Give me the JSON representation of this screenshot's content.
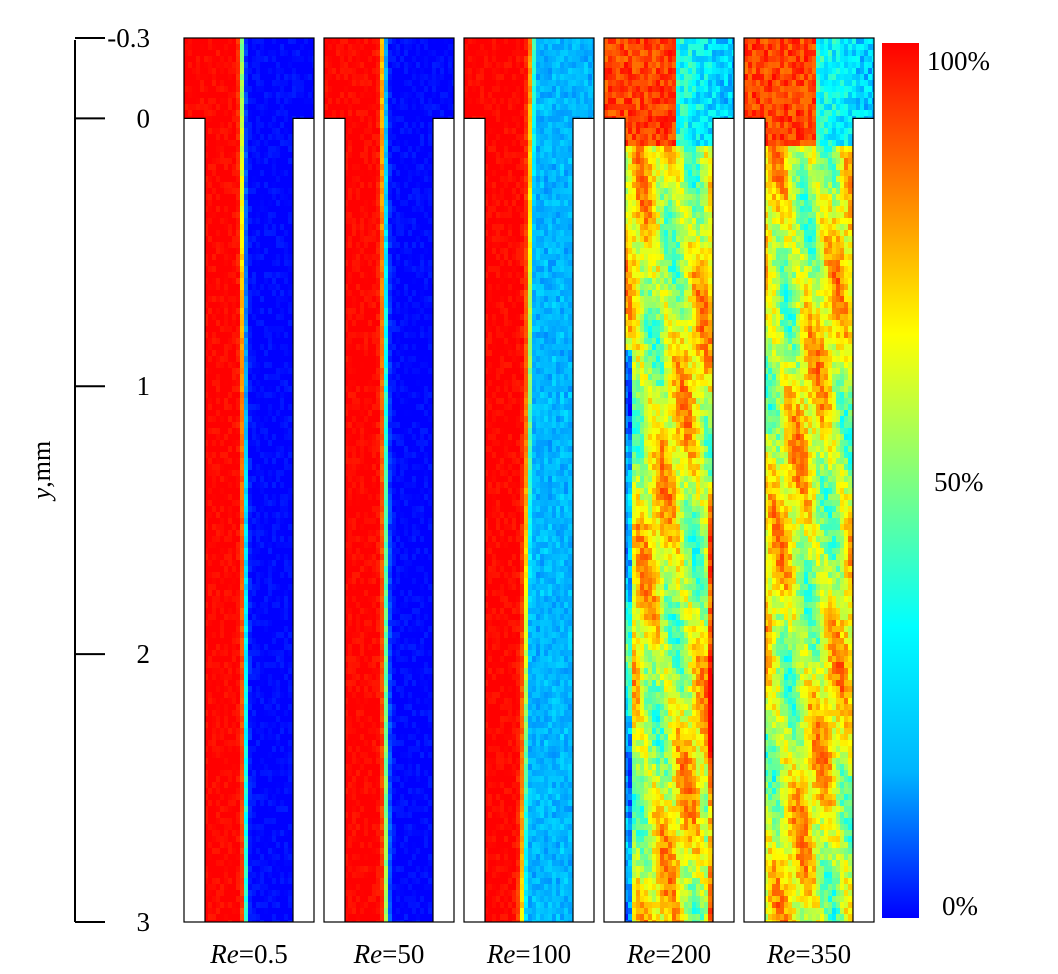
{
  "chart_data": {
    "type": "heatmap",
    "ylabel_var": "y",
    "ylabel_unit": ",mm",
    "y_ticks": [
      {
        "value": -0.3,
        "label": "-0.3"
      },
      {
        "value": 0,
        "label": "0"
      },
      {
        "value": 1,
        "label": "1"
      },
      {
        "value": 2,
        "label": "2"
      },
      {
        "value": 3,
        "label": "3"
      }
    ],
    "ylim": [
      -0.3,
      3
    ],
    "colorbar": {
      "min_label": "0%",
      "mid_label": "50%",
      "max_label": "100%",
      "colors": [
        "#0000ff",
        "#00b4ff",
        "#00ffff",
        "#7fff7f",
        "#ffff00",
        "#ff7f00",
        "#ff0000"
      ]
    },
    "panels": [
      {
        "var": "Re",
        "value": "=0.5",
        "pattern": "stratified",
        "interface": [
          0.42,
          0.45,
          0.46
        ],
        "smear": 0.05
      },
      {
        "var": "Re",
        "value": "=50",
        "pattern": "stratified",
        "interface": [
          0.44,
          0.46,
          0.47
        ],
        "smear": 0.06
      },
      {
        "var": "Re",
        "value": "=100",
        "pattern": "stratified",
        "interface": [
          0.55,
          0.5,
          0.44
        ],
        "smear": 0.08
      },
      {
        "var": "Re",
        "value": "=200",
        "pattern": "mixed"
      },
      {
        "var": "Re",
        "value": "=350",
        "pattern": "mixed"
      }
    ]
  }
}
